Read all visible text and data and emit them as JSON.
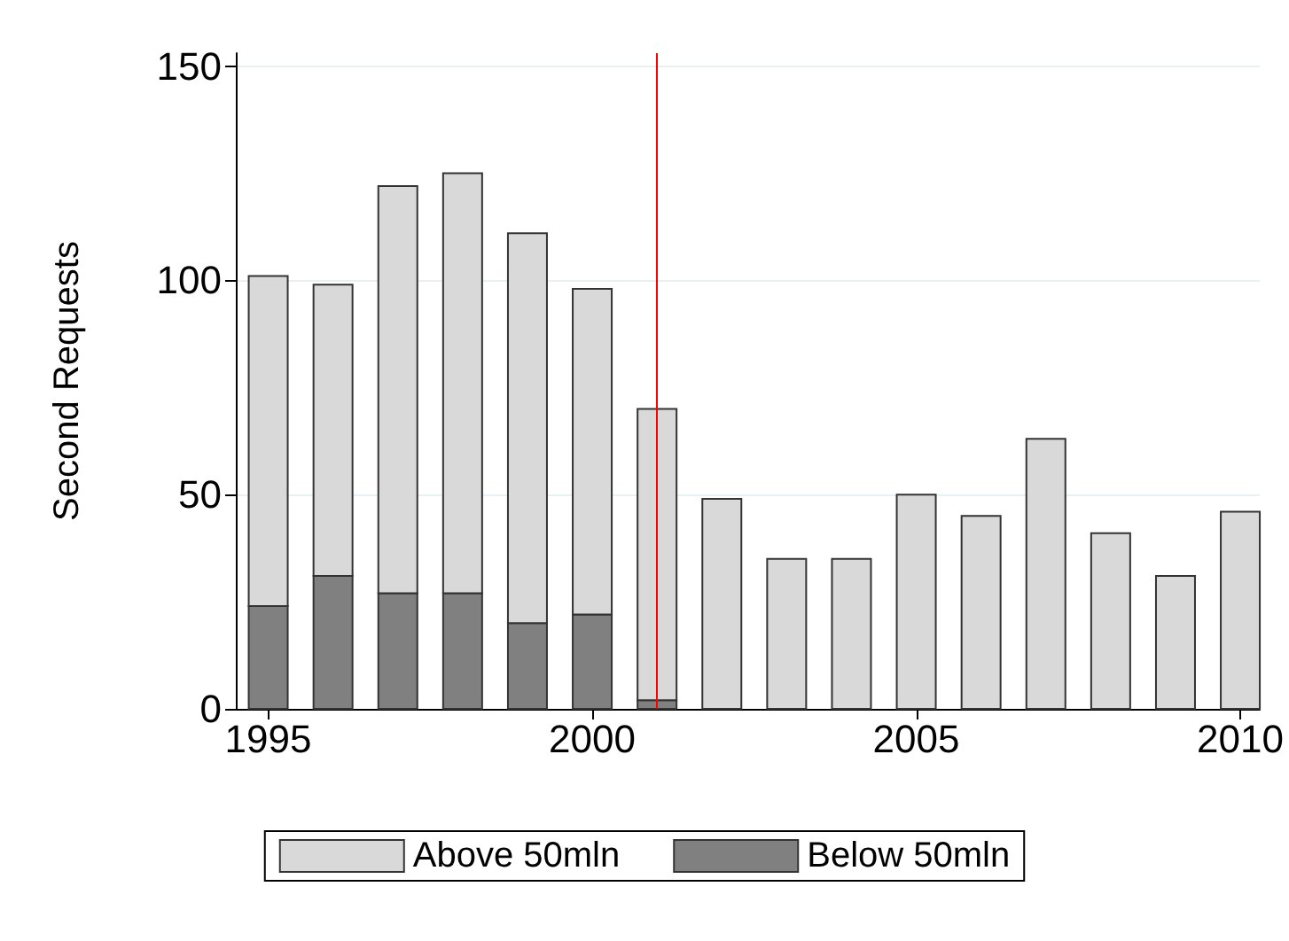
{
  "chart_data": {
    "type": "bar",
    "ylabel": "Second Requests",
    "stacked": true,
    "x": [
      1995,
      1996,
      1997,
      1998,
      1999,
      2000,
      2001,
      2002,
      2003,
      2004,
      2005,
      2006,
      2007,
      2008,
      2009,
      2010
    ],
    "series": [
      {
        "name": "Below 50mln",
        "color": "#808080",
        "values": [
          24,
          31,
          27,
          27,
          20,
          22,
          2,
          0,
          0,
          0,
          0,
          0,
          0,
          0,
          0,
          0
        ]
      },
      {
        "name": "Above 50mln",
        "color": "#d9d9d9",
        "values": [
          77,
          68,
          95,
          98,
          91,
          76,
          68,
          49,
          35,
          35,
          50,
          45,
          63,
          41,
          31,
          46
        ]
      }
    ],
    "xlim": [
      1994.5,
      2010.3
    ],
    "xticks": [
      1995,
      2000,
      2005,
      2010
    ],
    "ylim": [
      0,
      153
    ],
    "yticks": [
      0,
      50,
      100,
      150
    ],
    "ref_lines": [
      {
        "axis": "x",
        "value": 2001,
        "color": "#ff0000"
      }
    ],
    "grid": "y",
    "legend": "bottom"
  }
}
